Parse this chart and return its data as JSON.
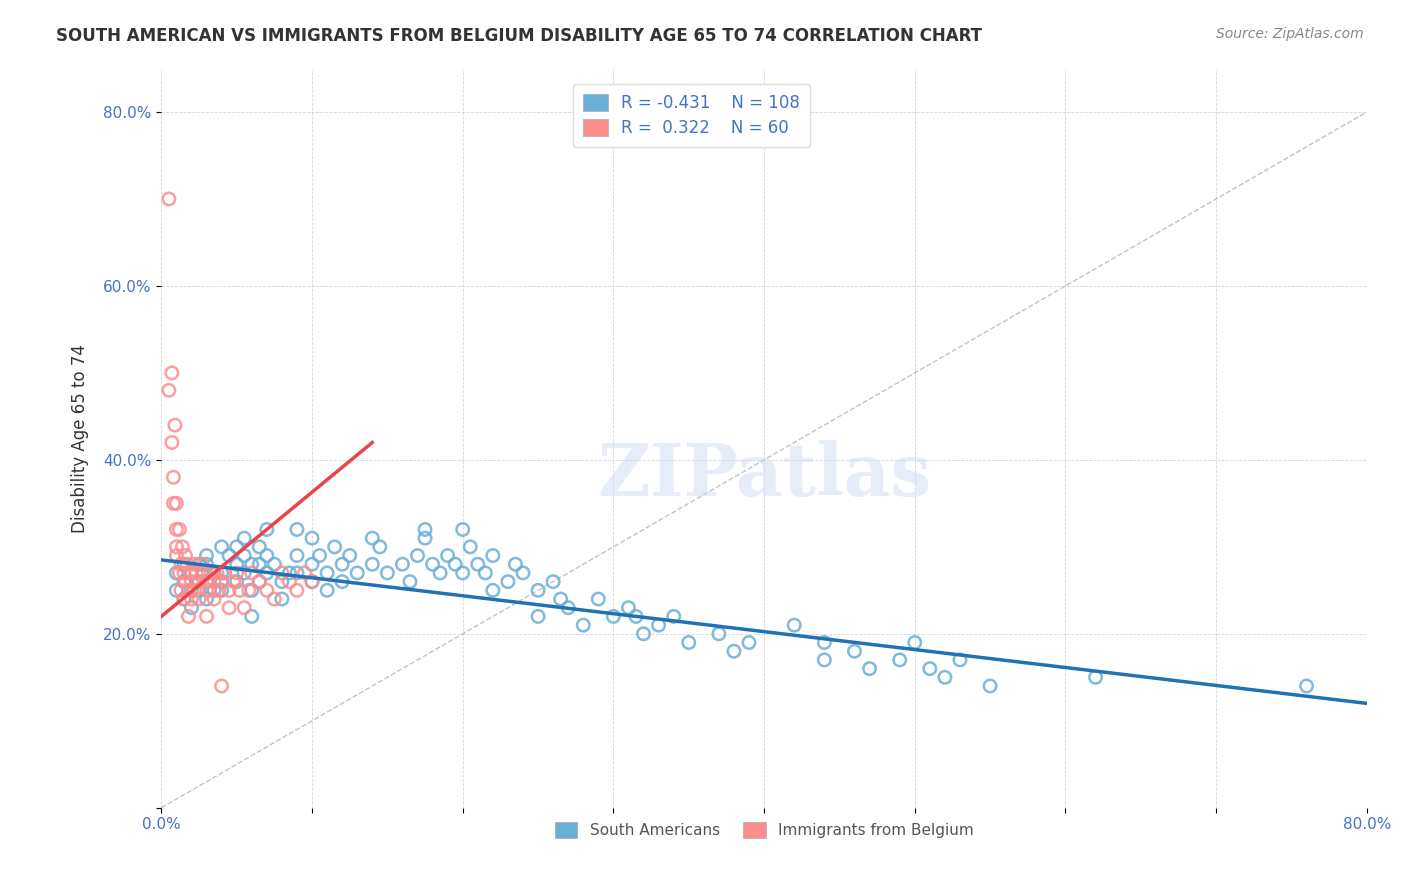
{
  "title": "SOUTH AMERICAN VS IMMIGRANTS FROM BELGIUM DISABILITY AGE 65 TO 74 CORRELATION CHART",
  "source": "Source: ZipAtlas.com",
  "xlabel": "",
  "ylabel": "Disability Age 65 to 74",
  "xmin": 0.0,
  "xmax": 0.8,
  "ymin": 0.0,
  "ymax": 0.85,
  "xticks": [
    0.0,
    0.1,
    0.2,
    0.3,
    0.4,
    0.5,
    0.6,
    0.7,
    0.8
  ],
  "xticklabels": [
    "0.0%",
    "",
    "",
    "",
    "",
    "",
    "",
    "",
    "80.0%"
  ],
  "yticks": [
    0.0,
    0.2,
    0.4,
    0.6,
    0.8
  ],
  "yticklabels": [
    "",
    "20.0%",
    "40.0%",
    "60.0%",
    "80.0%"
  ],
  "blue_color": "#6baed6",
  "pink_color": "#fc8d8d",
  "blue_line_color": "#2171b5",
  "pink_line_color": "#e8444a",
  "blue_R": -0.431,
  "blue_N": 108,
  "pink_R": 0.322,
  "pink_N": 60,
  "legend_label_blue": "South Americans",
  "legend_label_pink": "Immigrants from Belgium",
  "watermark": "ZIPatlas",
  "blue_scatter_x": [
    0.01,
    0.01,
    0.015,
    0.015,
    0.015,
    0.02,
    0.02,
    0.02,
    0.025,
    0.025,
    0.025,
    0.03,
    0.03,
    0.03,
    0.03,
    0.035,
    0.035,
    0.04,
    0.04,
    0.04,
    0.04,
    0.045,
    0.05,
    0.05,
    0.05,
    0.055,
    0.055,
    0.055,
    0.06,
    0.06,
    0.06,
    0.065,
    0.065,
    0.065,
    0.07,
    0.07,
    0.07,
    0.075,
    0.08,
    0.08,
    0.085,
    0.09,
    0.09,
    0.09,
    0.1,
    0.1,
    0.1,
    0.105,
    0.11,
    0.11,
    0.115,
    0.12,
    0.12,
    0.125,
    0.13,
    0.14,
    0.14,
    0.145,
    0.15,
    0.16,
    0.165,
    0.17,
    0.175,
    0.175,
    0.18,
    0.185,
    0.19,
    0.195,
    0.2,
    0.2,
    0.205,
    0.21,
    0.215,
    0.22,
    0.22,
    0.23,
    0.235,
    0.24,
    0.25,
    0.25,
    0.26,
    0.265,
    0.27,
    0.28,
    0.29,
    0.3,
    0.31,
    0.315,
    0.32,
    0.33,
    0.34,
    0.35,
    0.37,
    0.38,
    0.39,
    0.42,
    0.44,
    0.44,
    0.46,
    0.47,
    0.49,
    0.5,
    0.51,
    0.52,
    0.53,
    0.55,
    0.62,
    0.76
  ],
  "blue_scatter_y": [
    0.25,
    0.27,
    0.26,
    0.28,
    0.24,
    0.27,
    0.25,
    0.23,
    0.28,
    0.26,
    0.25,
    0.29,
    0.26,
    0.28,
    0.24,
    0.27,
    0.25,
    0.27,
    0.3,
    0.26,
    0.25,
    0.29,
    0.3,
    0.28,
    0.26,
    0.29,
    0.27,
    0.31,
    0.28,
    0.25,
    0.22,
    0.3,
    0.28,
    0.26,
    0.27,
    0.32,
    0.29,
    0.28,
    0.26,
    0.24,
    0.27,
    0.29,
    0.32,
    0.27,
    0.26,
    0.28,
    0.31,
    0.29,
    0.27,
    0.25,
    0.3,
    0.28,
    0.26,
    0.29,
    0.27,
    0.28,
    0.31,
    0.3,
    0.27,
    0.28,
    0.26,
    0.29,
    0.32,
    0.31,
    0.28,
    0.27,
    0.29,
    0.28,
    0.27,
    0.32,
    0.3,
    0.28,
    0.27,
    0.29,
    0.25,
    0.26,
    0.28,
    0.27,
    0.25,
    0.22,
    0.26,
    0.24,
    0.23,
    0.21,
    0.24,
    0.22,
    0.23,
    0.22,
    0.2,
    0.21,
    0.22,
    0.19,
    0.2,
    0.18,
    0.19,
    0.21,
    0.19,
    0.17,
    0.18,
    0.16,
    0.17,
    0.19,
    0.16,
    0.15,
    0.17,
    0.14,
    0.15,
    0.14
  ],
  "pink_scatter_x": [
    0.005,
    0.005,
    0.007,
    0.007,
    0.008,
    0.008,
    0.009,
    0.01,
    0.01,
    0.01,
    0.01,
    0.012,
    0.012,
    0.013,
    0.013,
    0.014,
    0.015,
    0.015,
    0.016,
    0.016,
    0.017,
    0.018,
    0.018,
    0.019,
    0.02,
    0.02,
    0.022,
    0.022,
    0.023,
    0.024,
    0.025,
    0.027,
    0.028,
    0.03,
    0.03,
    0.032,
    0.033,
    0.035,
    0.035,
    0.037,
    0.038,
    0.04,
    0.04,
    0.042,
    0.045,
    0.045,
    0.048,
    0.05,
    0.052,
    0.055,
    0.058,
    0.06,
    0.065,
    0.07,
    0.075,
    0.08,
    0.085,
    0.09,
    0.095,
    0.1
  ],
  "pink_scatter_y": [
    0.7,
    0.48,
    0.42,
    0.5,
    0.38,
    0.35,
    0.44,
    0.35,
    0.32,
    0.3,
    0.29,
    0.27,
    0.32,
    0.28,
    0.25,
    0.3,
    0.27,
    0.24,
    0.29,
    0.26,
    0.28,
    0.25,
    0.22,
    0.27,
    0.26,
    0.24,
    0.28,
    0.25,
    0.27,
    0.26,
    0.24,
    0.28,
    0.27,
    0.26,
    0.22,
    0.25,
    0.27,
    0.26,
    0.24,
    0.27,
    0.25,
    0.26,
    0.14,
    0.27,
    0.25,
    0.23,
    0.26,
    0.27,
    0.25,
    0.23,
    0.25,
    0.27,
    0.26,
    0.25,
    0.24,
    0.27,
    0.26,
    0.25,
    0.27,
    0.26
  ],
  "blue_trendline_x": [
    0.0,
    0.8
  ],
  "blue_trendline_y": [
    0.285,
    0.12
  ],
  "pink_trendline_x": [
    0.0,
    0.14
  ],
  "pink_trendline_y": [
    0.22,
    0.42
  ],
  "diagonal_line_x": [
    0.0,
    0.8
  ],
  "diagonal_line_y": [
    0.0,
    0.8
  ]
}
